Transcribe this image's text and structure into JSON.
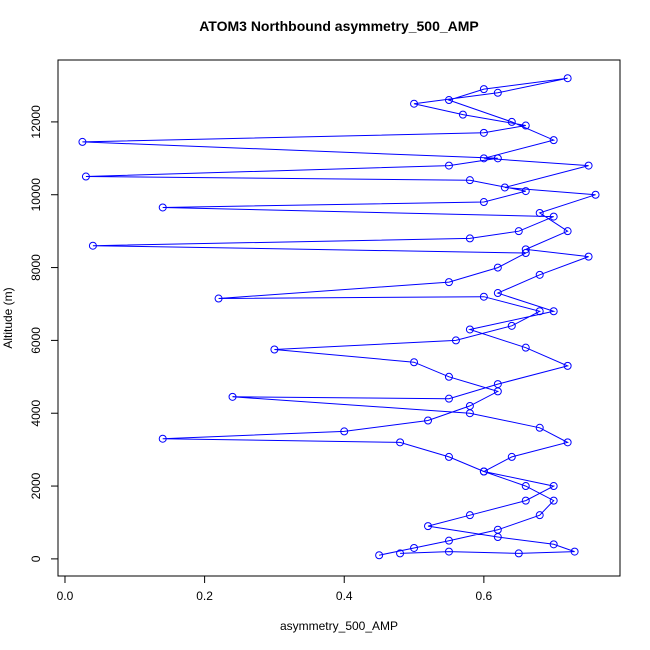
{
  "chart_data": {
    "type": "line",
    "markers": true,
    "title": "ATOM3 Northbound asymmetry_500_AMP",
    "xlabel": "asymmetry_500_AMP",
    "ylabel": "Altitude (m)",
    "color": "#0000ff",
    "x": [
      0.45,
      0.5,
      0.55,
      0.62,
      0.68,
      0.7,
      0.66,
      0.6,
      0.55,
      0.48,
      0.14,
      0.4,
      0.52,
      0.58,
      0.62,
      0.55,
      0.5,
      0.3,
      0.56,
      0.64,
      0.68,
      0.6,
      0.22,
      0.55,
      0.62,
      0.66,
      0.04,
      0.58,
      0.65,
      0.7,
      0.14,
      0.6,
      0.66,
      0.58,
      0.03,
      0.55,
      0.62,
      0.025,
      0.6,
      0.66,
      0.57,
      0.5,
      0.62,
      0.72,
      0.6,
      0.55,
      0.64,
      0.7,
      0.6,
      0.75,
      0.63,
      0.76,
      0.68,
      0.72,
      0.66,
      0.75,
      0.68,
      0.62,
      0.7,
      0.58,
      0.66,
      0.72,
      0.62,
      0.55,
      0.24,
      0.58,
      0.68,
      0.72,
      0.64,
      0.6,
      0.7,
      0.66,
      0.58,
      0.52,
      0.62,
      0.7,
      0.73,
      0.65,
      0.55,
      0.48
    ],
    "values": [
      100,
      300,
      500,
      800,
      1200,
      1600,
      2000,
      2400,
      2800,
      3200,
      3300,
      3500,
      3800,
      4200,
      4600,
      5000,
      5400,
      5750,
      6000,
      6400,
      6800,
      7200,
      7150,
      7600,
      8000,
      8400,
      8600,
      8800,
      9000,
      9400,
      9650,
      9800,
      10100,
      10400,
      10500,
      10800,
      11000,
      11450,
      11700,
      11900,
      12200,
      12500,
      12800,
      13200,
      12900,
      12600,
      12000,
      11500,
      11000,
      10800,
      10200,
      10000,
      9500,
      9000,
      8500,
      8300,
      7800,
      7300,
      6800,
      6300,
      5800,
      5300,
      4800,
      4400,
      4450,
      4000,
      3600,
      3200,
      2800,
      2400,
      2000,
      1600,
      1200,
      900,
      600,
      400,
      200,
      150,
      200,
      150
    ],
    "xlim": [
      -0.01,
      0.795
    ],
    "ylim": [
      -470,
      13700
    ],
    "xticks": [
      {
        "value": 0,
        "label": "0.0"
      },
      0.2,
      0.4,
      0.6
    ],
    "yticks": [
      0,
      2000,
      4000,
      6000,
      8000,
      10000,
      12000
    ]
  }
}
